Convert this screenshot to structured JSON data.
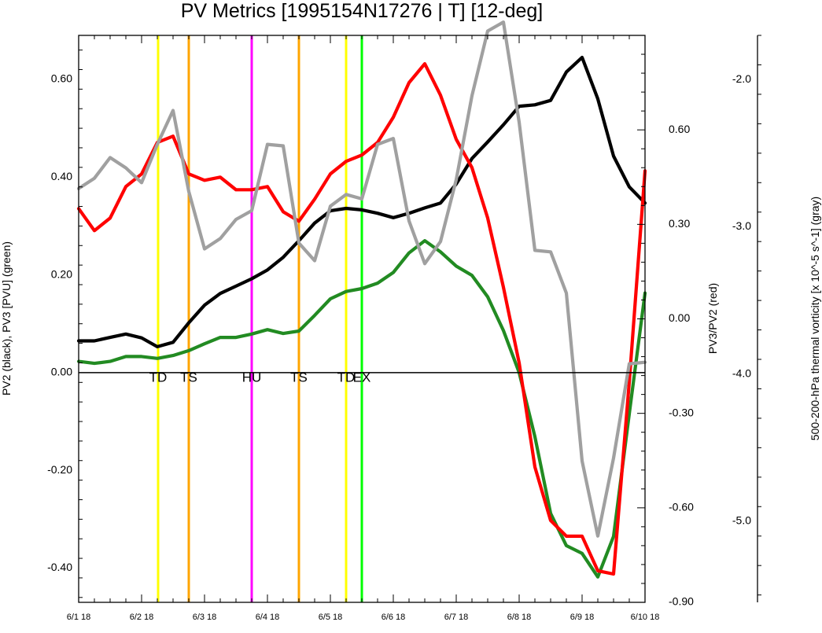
{
  "chart_data": {
    "type": "line",
    "title": "PV Metrics [1995154N17276 | T] [12-deg]",
    "x_labels": [
      "6/1 18",
      "6/2 18",
      "6/3 18",
      "6/4 18",
      "6/5 18",
      "6/6 18",
      "6/7 18",
      "6/8 18",
      "6/9 18",
      "6/10 18"
    ],
    "xlim": [
      0,
      36
    ],
    "axes": {
      "left": {
        "label": "PV2 (black), PV3 [PVU] (green)",
        "ylim": [
          -0.47,
          0.69
        ],
        "major_ticks": [
          -0.4,
          -0.2,
          0.0,
          0.2,
          0.4,
          0.6
        ],
        "tick_labels": [
          "-0.40",
          "-0.20",
          "0.00",
          "0.20",
          "0.40",
          "0.60"
        ],
        "zero_line": 0.0
      },
      "right": {
        "label": "PV3/PV2 (red)",
        "ylim": [
          -0.9,
          0.9
        ],
        "major_ticks": [
          -0.9,
          -0.6,
          -0.3,
          0.0,
          0.3,
          0.6
        ],
        "tick_labels": [
          "-0.90",
          "-0.60",
          "-0.30",
          "0.00",
          "0.30",
          "0.60"
        ]
      },
      "far_right": {
        "label": "500-200-hPa thermal vorticity [x 10^-5 s^-1] (gray)",
        "ylim": [
          -5.55,
          -1.7
        ],
        "major_ticks": [
          -5.0,
          -4.0,
          -3.0,
          -2.0
        ],
        "tick_labels": [
          "-5.0",
          "-4.0",
          "-3.0",
          "-2.0"
        ]
      }
    },
    "series": [
      {
        "name": "PV2",
        "axis": "left",
        "color": "#000000",
        "x": [
          0,
          1,
          2,
          3,
          4,
          5,
          6,
          7,
          8,
          9,
          10,
          11,
          12,
          13,
          14,
          15,
          16,
          17,
          18,
          19,
          20,
          21,
          22,
          23,
          24,
          25,
          26,
          27,
          28,
          29,
          30,
          31,
          32,
          33,
          34,
          35,
          36
        ],
        "values": [
          0.065,
          0.065,
          0.072,
          0.079,
          0.071,
          0.053,
          0.062,
          0.102,
          0.138,
          0.162,
          0.177,
          0.192,
          0.21,
          0.236,
          0.27,
          0.306,
          0.331,
          0.336,
          0.333,
          0.326,
          0.317,
          0.326,
          0.337,
          0.347,
          0.386,
          0.438,
          0.472,
          0.507,
          0.545,
          0.548,
          0.557,
          0.615,
          0.645,
          0.56,
          0.443,
          0.38,
          0.347
        ]
      },
      {
        "name": "PV3",
        "axis": "left",
        "color": "#228b22",
        "x": [
          0,
          1,
          2,
          3,
          4,
          5,
          6,
          7,
          8,
          9,
          10,
          11,
          12,
          13,
          14,
          15,
          16,
          17,
          18,
          19,
          20,
          21,
          22,
          23,
          24,
          25,
          26,
          27,
          28,
          29,
          30,
          31,
          32,
          33,
          34,
          35,
          36
        ],
        "values": [
          0.023,
          0.019,
          0.023,
          0.033,
          0.033,
          0.029,
          0.035,
          0.045,
          0.059,
          0.072,
          0.072,
          0.079,
          0.088,
          0.08,
          0.085,
          0.117,
          0.151,
          0.166,
          0.172,
          0.183,
          0.205,
          0.245,
          0.27,
          0.247,
          0.218,
          0.199,
          0.155,
          0.086,
          0.0,
          -0.131,
          -0.288,
          -0.354,
          -0.37,
          -0.418,
          -0.335,
          -0.084,
          0.163
        ]
      },
      {
        "name": "PV3/PV2",
        "axis": "right",
        "color": "#ff0000",
        "x": [
          0,
          1,
          2,
          3,
          4,
          5,
          6,
          7,
          8,
          9,
          10,
          11,
          12,
          13,
          14,
          15,
          16,
          17,
          18,
          19,
          20,
          21,
          22,
          23,
          24,
          25,
          26,
          27,
          28,
          29,
          30,
          31,
          32,
          33,
          34,
          35,
          36
        ],
        "values": [
          0.35,
          0.28,
          0.32,
          0.42,
          0.46,
          0.56,
          0.58,
          0.46,
          0.44,
          0.45,
          0.41,
          0.41,
          0.42,
          0.34,
          0.31,
          0.38,
          0.46,
          0.5,
          0.52,
          0.56,
          0.64,
          0.75,
          0.81,
          0.71,
          0.57,
          0.48,
          0.32,
          0.1,
          -0.14,
          -0.47,
          -0.64,
          -0.69,
          -0.69,
          -0.8,
          -0.81,
          -0.2,
          0.47
        ]
      },
      {
        "name": "thermal vorticity",
        "axis": "far_right",
        "color": "#a0a0a0",
        "x": [
          0,
          1,
          2,
          3,
          4,
          5,
          6,
          7,
          8,
          9,
          10,
          11,
          12,
          13,
          14,
          15,
          16,
          17,
          18,
          19,
          20,
          21,
          22,
          23,
          24,
          25,
          26,
          27,
          28,
          29,
          30,
          31,
          32,
          33,
          34,
          35,
          36
        ],
        "values": [
          -2.74,
          -2.67,
          -2.53,
          -2.6,
          -2.7,
          -2.44,
          -2.21,
          -2.76,
          -3.15,
          -3.08,
          -2.95,
          -2.89,
          -2.44,
          -2.45,
          -3.11,
          -3.23,
          -2.86,
          -2.78,
          -2.81,
          -2.44,
          -2.4,
          -2.96,
          -3.25,
          -3.1,
          -2.68,
          -2.11,
          -1.67,
          -1.61,
          -2.29,
          -3.16,
          -3.17,
          -3.45,
          -4.59,
          -5.1,
          -4.57,
          -3.93,
          -3.92
        ]
      }
    ],
    "events": [
      {
        "label": "TD",
        "x": 5.05,
        "color": "#ffff00"
      },
      {
        "label": "TS",
        "x": 7.0,
        "color": "#ffa500"
      },
      {
        "label": "HU",
        "x": 11.0,
        "color": "#ff00ff"
      },
      {
        "label": "TS",
        "x": 14.0,
        "color": "#ffa500"
      },
      {
        "label": "TD",
        "x": 17.0,
        "color": "#ffff00"
      },
      {
        "label": "EX",
        "x": 18.0,
        "color": "#00ff00"
      }
    ],
    "grid": false
  }
}
